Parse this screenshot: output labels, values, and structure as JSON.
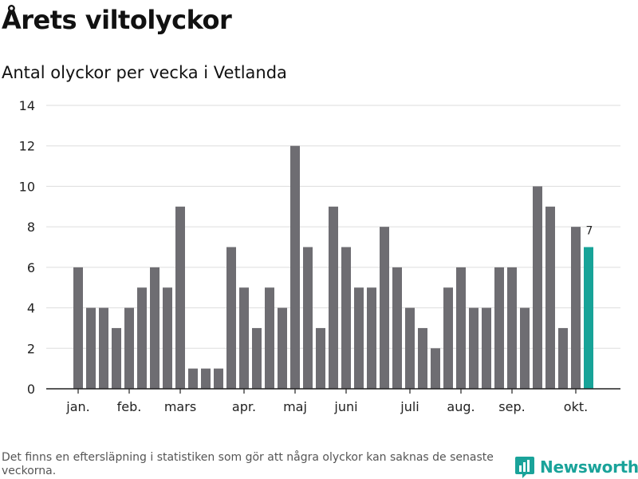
{
  "title": "Årets viltolyckor",
  "subtitle": "Antal olyckor per vecka i Vetlanda",
  "footnote": "Det finns en eftersläpning i statistiken som gör att några olyckor kan saknas de senaste veckorna.",
  "brand": {
    "name": "Newsworthy",
    "icon": "bar-chart-icon"
  },
  "colors": {
    "bar": "#6e6d72",
    "highlight": "#17a398",
    "grid": "#dddddd",
    "axis": "#222222"
  },
  "chart_data": {
    "type": "bar",
    "title": "Antal olyckor per vecka i Vetlanda",
    "xlabel": "",
    "ylabel": "",
    "ylim": [
      0,
      14
    ],
    "yticks": [
      0,
      2,
      4,
      6,
      8,
      10,
      12,
      14
    ],
    "grid": true,
    "weeks": [
      1,
      2,
      3,
      4,
      5,
      6,
      7,
      8,
      9,
      10,
      11,
      12,
      13,
      14,
      15,
      16,
      17,
      18,
      19,
      20,
      21,
      22,
      23,
      24,
      25,
      26,
      27,
      28,
      29,
      30,
      31,
      32,
      33,
      34,
      35,
      36,
      37,
      38,
      39,
      40,
      41
    ],
    "values": [
      6,
      4,
      4,
      3,
      4,
      5,
      6,
      5,
      9,
      1,
      1,
      1,
      7,
      5,
      3,
      5,
      4,
      12,
      7,
      3,
      9,
      7,
      5,
      5,
      8,
      6,
      4,
      3,
      2,
      5,
      6,
      4,
      4,
      6,
      6,
      4,
      10,
      9,
      3,
      8,
      7
    ],
    "highlight_index": 40,
    "highlight_label": "7",
    "month_labels": [
      {
        "label": "jan.",
        "week_index": 0
      },
      {
        "label": "feb.",
        "week_index": 4
      },
      {
        "label": "mars",
        "week_index": 8
      },
      {
        "label": "apr.",
        "week_index": 13
      },
      {
        "label": "maj",
        "week_index": 17
      },
      {
        "label": "juni",
        "week_index": 21
      },
      {
        "label": "juli",
        "week_index": 26
      },
      {
        "label": "aug.",
        "week_index": 30
      },
      {
        "label": "sep.",
        "week_index": 34
      },
      {
        "label": "okt.",
        "week_index": 39
      }
    ]
  }
}
